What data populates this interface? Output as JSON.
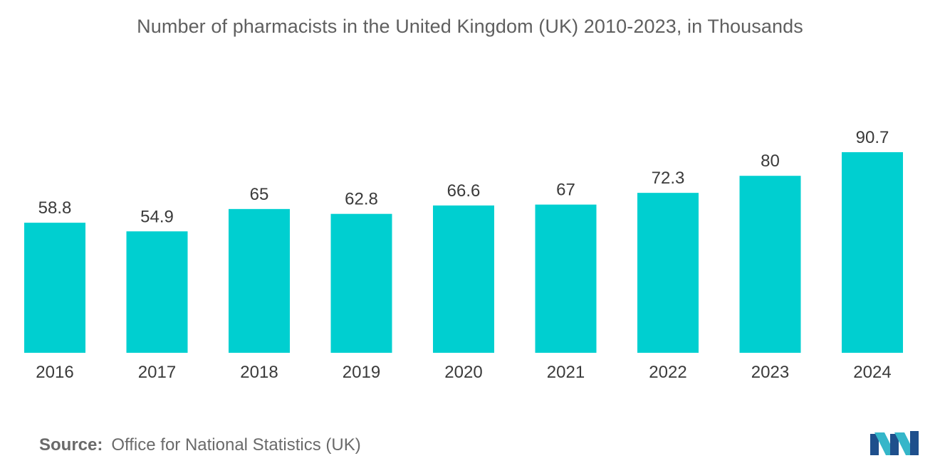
{
  "chart_data": {
    "type": "bar",
    "title": "Number of pharmacists in the United Kingdom (UK) 2010-2023, in Thousands",
    "categories": [
      "2016",
      "2017",
      "2018",
      "2019",
      "2020",
      "2021",
      "2022",
      "2023",
      "2024"
    ],
    "values": [
      58.8,
      54.9,
      65,
      62.8,
      66.6,
      67,
      72.3,
      80,
      90.7
    ],
    "value_labels": [
      "58.8",
      "54.9",
      "65",
      "62.8",
      "66.6",
      "67",
      "72.3",
      "80",
      "90.7"
    ],
    "xlabel": "",
    "ylabel": "",
    "ylim": [
      0,
      100
    ],
    "grid": false,
    "legend": "none",
    "bar_color": "#00cfd0"
  },
  "source": {
    "label": "Source:",
    "text": "Office for National Statistics (UK)"
  },
  "logo": {
    "icon": "mordor-intelligence-logo-icon",
    "colors": [
      "#1e4f8c",
      "#35b6c9"
    ]
  }
}
